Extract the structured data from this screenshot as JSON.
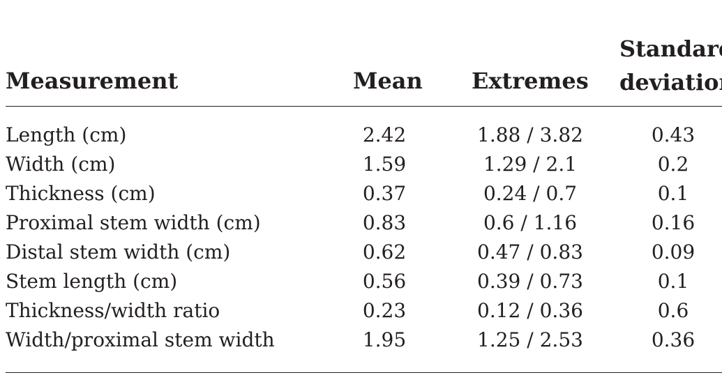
{
  "table": {
    "headers": {
      "measurement": "Measurement",
      "mean": "Mean",
      "extremes": "Extremes",
      "sd_line1": "Standard",
      "sd_line2": "deviation"
    },
    "rows": [
      {
        "measurement": "Length (cm)",
        "mean": "2.42",
        "extremes": "1.88 / 3.82",
        "sd": "0.43"
      },
      {
        "measurement": "Width (cm)",
        "mean": "1.59",
        "extremes": "1.29 / 2.1",
        "sd": "0.2"
      },
      {
        "measurement": "Thickness (cm)",
        "mean": "0.37",
        "extremes": "0.24 / 0.7",
        "sd": "0.1"
      },
      {
        "measurement": "Proximal stem width (cm)",
        "mean": "0.83",
        "extremes": "0.6 / 1.16",
        "sd": "0.16"
      },
      {
        "measurement": "Distal stem width (cm)",
        "mean": "0.62",
        "extremes": "0.47 / 0.83",
        "sd": "0.09"
      },
      {
        "measurement": "Stem length (cm)",
        "mean": "0.56",
        "extremes": "0.39 / 0.73",
        "sd": "0.1"
      },
      {
        "measurement": "Thickness/width ratio",
        "mean": "0.23",
        "extremes": "0.12 / 0.36",
        "sd": "0.6"
      },
      {
        "measurement": "Width/proximal stem width",
        "mean": "1.95",
        "extremes": "1.25 / 2.53",
        "sd": "0.36"
      }
    ]
  }
}
